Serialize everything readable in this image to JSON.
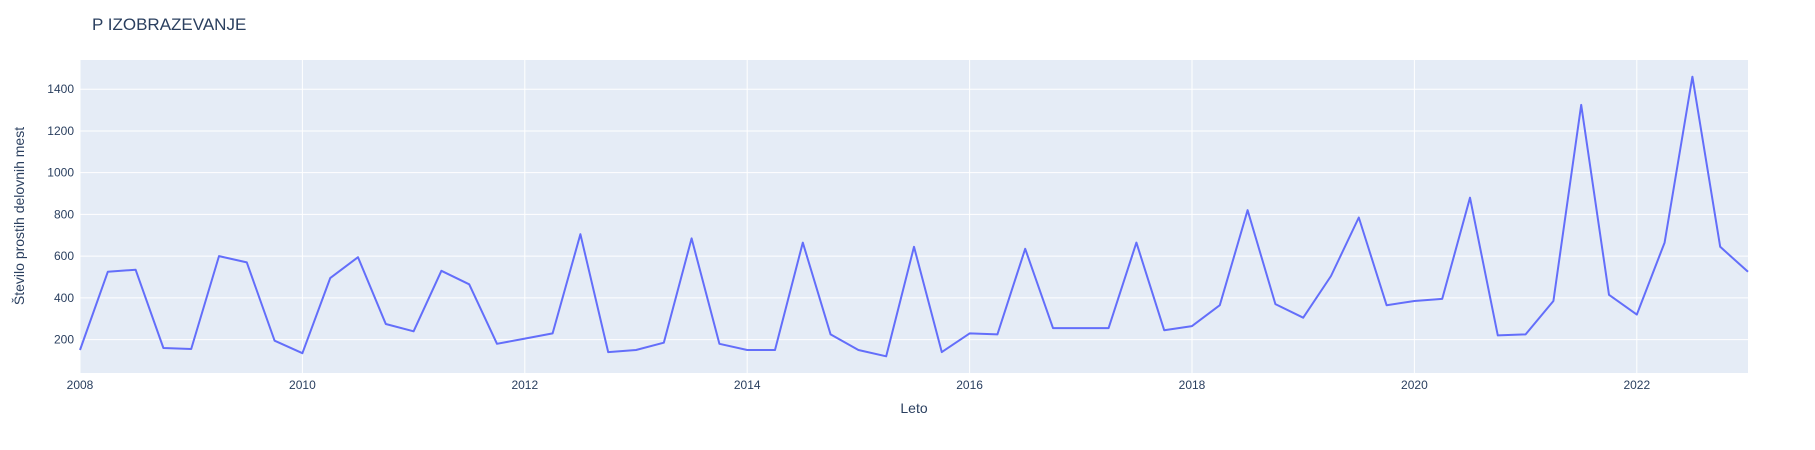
{
  "chart_data": {
    "type": "line",
    "title": "P IZOBRAZEVANJE",
    "xlabel": "Leto",
    "ylabel": "Število prostih delovnih mest",
    "xlim": [
      2008,
      2023
    ],
    "ylim": [
      40,
      1540
    ],
    "x_ticks": [
      2008,
      2010,
      2012,
      2014,
      2016,
      2018,
      2020,
      2022
    ],
    "y_ticks": [
      200,
      400,
      600,
      800,
      1000,
      1200,
      1400
    ],
    "grid": true,
    "colors": {
      "line": "#636efa",
      "plot_bg": "#e5ecf6",
      "grid": "#ffffff",
      "text": "#2a3f5f"
    },
    "series": [
      {
        "x": [
          2008.0,
          2008.25,
          2008.5,
          2008.75,
          2009.0,
          2009.25,
          2009.5,
          2009.75,
          2010.0,
          2010.25,
          2010.5,
          2010.75,
          2011.0,
          2011.25,
          2011.5,
          2011.75,
          2012.0,
          2012.25,
          2012.5,
          2012.75,
          2013.0,
          2013.25,
          2013.5,
          2013.75,
          2014.0,
          2014.25,
          2014.5,
          2014.75,
          2015.0,
          2015.25,
          2015.5,
          2015.75,
          2016.0,
          2016.25,
          2016.5,
          2016.75,
          2017.0,
          2017.25,
          2017.5,
          2017.75,
          2018.0,
          2018.25,
          2018.5,
          2018.75,
          2019.0,
          2019.25,
          2019.5,
          2019.75,
          2020.0,
          2020.25,
          2020.5,
          2020.75,
          2021.0,
          2021.25,
          2021.5,
          2021.75,
          2022.0,
          2022.25,
          2022.5,
          2022.75,
          2023.0
        ],
        "values": [
          150,
          525,
          535,
          160,
          155,
          600,
          570,
          195,
          135,
          495,
          595,
          275,
          240,
          530,
          465,
          180,
          205,
          230,
          705,
          140,
          150,
          185,
          685,
          180,
          150,
          150,
          665,
          225,
          150,
          120,
          645,
          140,
          230,
          225,
          635,
          255,
          255,
          255,
          665,
          245,
          265,
          365,
          820,
          370,
          305,
          505,
          785,
          365,
          385,
          395,
          880,
          220,
          225,
          385,
          1325,
          415,
          320,
          665,
          1460,
          645,
          525
        ]
      }
    ]
  }
}
